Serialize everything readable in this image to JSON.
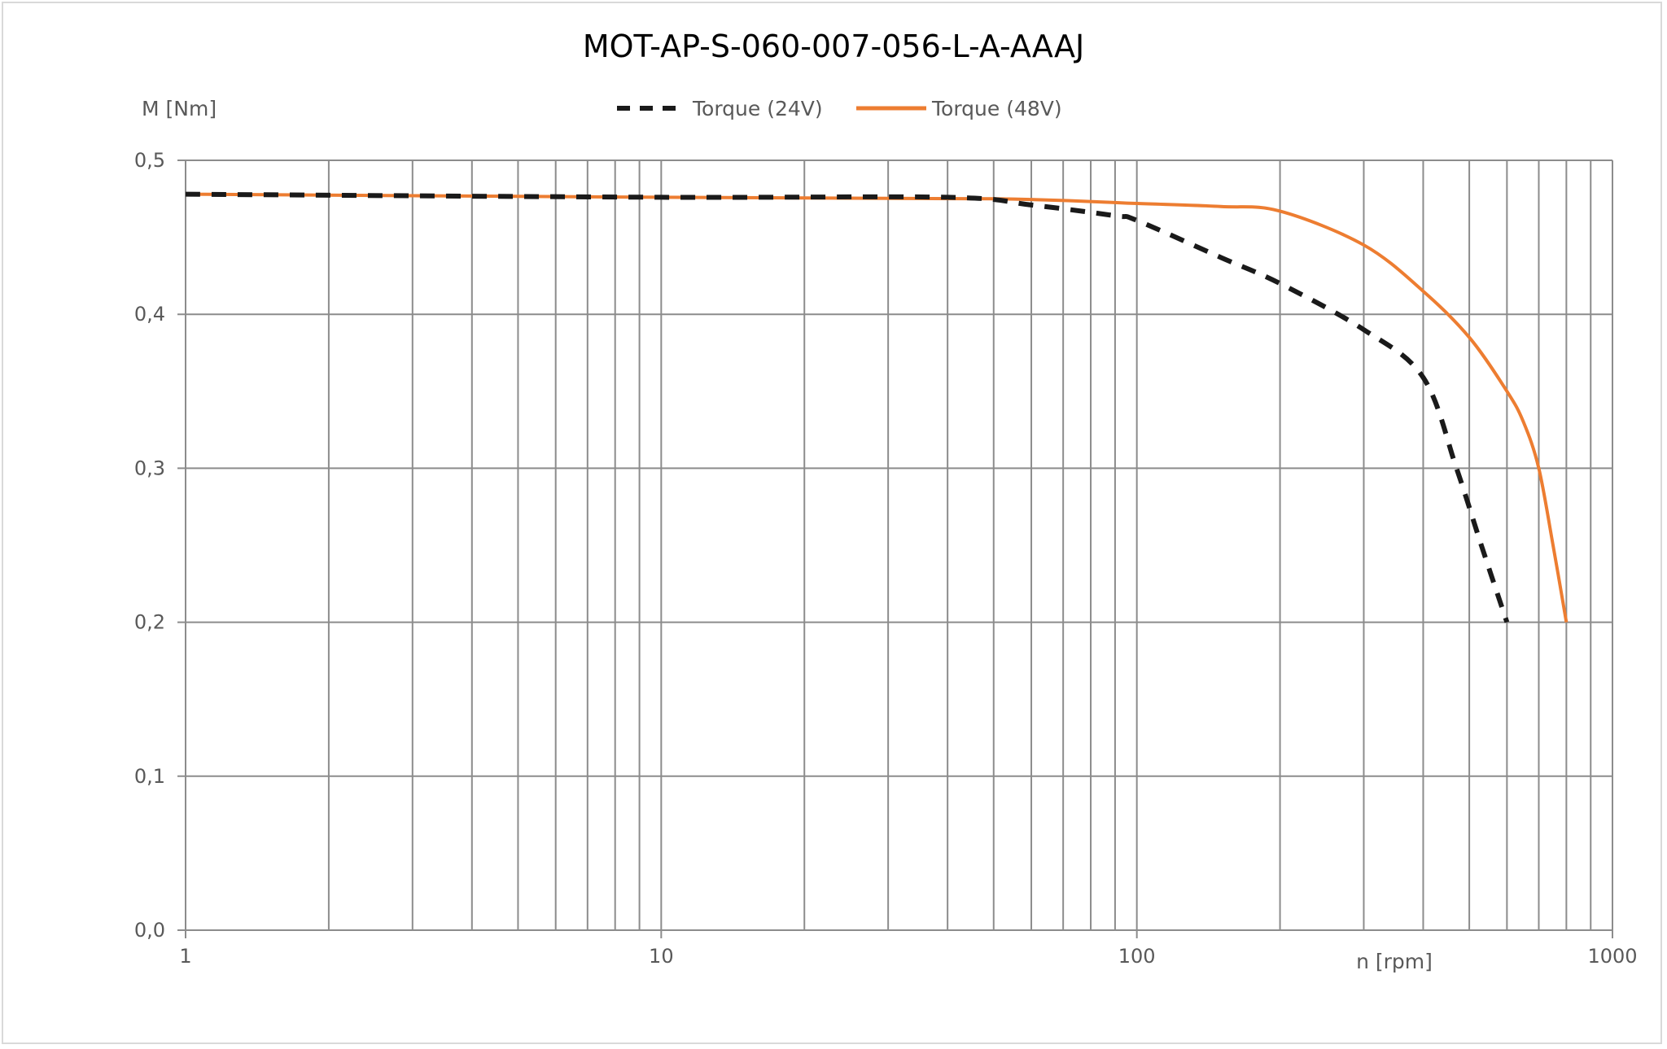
{
  "chart_data": {
    "type": "line",
    "title": "MOT-AP-S-060-007-056-L-A-AAAJ",
    "xlabel": "n [rpm]",
    "ylabel": "M [Nm]",
    "x_scale": "log",
    "xlim": [
      1,
      1000
    ],
    "ylim": [
      0,
      0.5
    ],
    "x_ticks": [
      "1",
      "10",
      "100",
      "1000"
    ],
    "y_ticks": [
      "0,0",
      "0,1",
      "0,2",
      "0,3",
      "0,4",
      "0,5"
    ],
    "grid": true,
    "legend": "top",
    "series": [
      {
        "name": "Torque (24V)",
        "color": "#1a1a1a",
        "style": "dashed",
        "x": [
          1,
          10,
          40,
          60,
          90,
          100,
          150,
          200,
          300,
          400,
          470,
          530,
          600
        ],
        "y": [
          0.478,
          0.476,
          0.476,
          0.471,
          0.464,
          0.461,
          0.437,
          0.42,
          0.39,
          0.359,
          0.3,
          0.25,
          0.2
        ]
      },
      {
        "name": "Torque (48V)",
        "color": "#ed7d31",
        "style": "solid",
        "x": [
          1,
          10,
          50,
          100,
          150,
          200,
          300,
          400,
          500,
          600,
          650,
          700,
          750,
          800
        ],
        "y": [
          0.478,
          0.476,
          0.475,
          0.472,
          0.47,
          0.467,
          0.445,
          0.415,
          0.385,
          0.35,
          0.33,
          0.3,
          0.25,
          0.2
        ]
      }
    ]
  }
}
